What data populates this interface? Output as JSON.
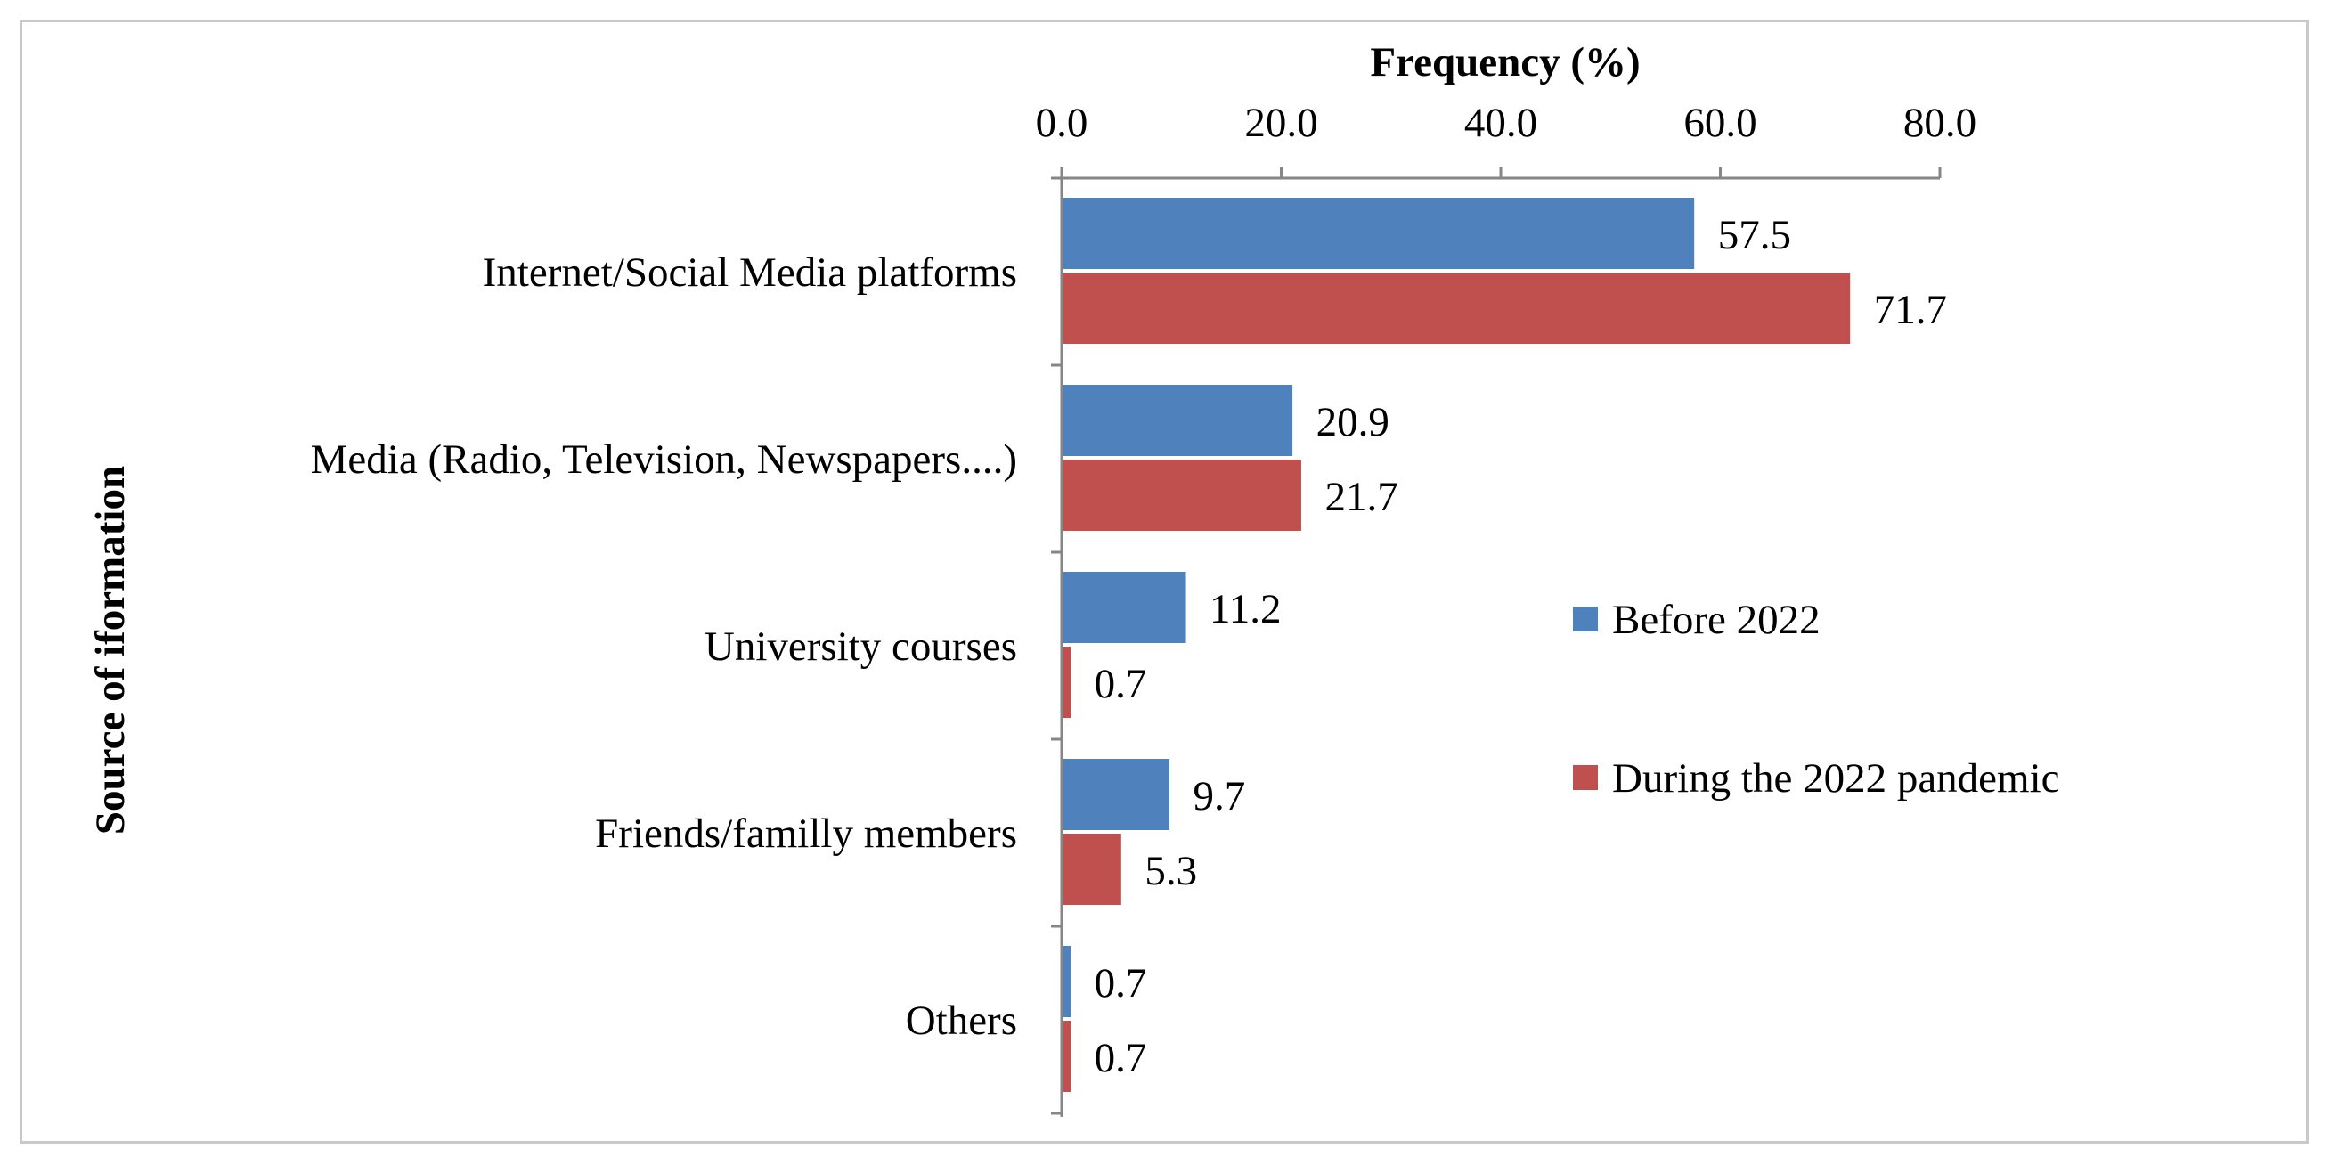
{
  "chart_data": {
    "type": "bar",
    "orientation": "horizontal",
    "title": "",
    "xlabel": "Frequency (%)",
    "ylabel": "Source of iformation",
    "xlim": [
      0,
      80
    ],
    "xticks": [
      0,
      20,
      40,
      60,
      80
    ],
    "xtick_labels": [
      "0.0",
      "20.0",
      "40.0",
      "60.0",
      "80.0"
    ],
    "x_axis_position": "top",
    "grid": false,
    "legend_position": "right",
    "categories": [
      "Internet/Social Media platforms",
      "Media (Radio, Television,  Newspapers....)",
      "University courses",
      "Friends/familly members",
      "Others"
    ],
    "series": [
      {
        "name": "Before 2022",
        "color": "#4F81BD",
        "values": [
          57.5,
          20.9,
          11.2,
          9.7,
          0.7
        ],
        "labels": [
          "57.5",
          "20.9",
          "11.2",
          "9.7",
          "0.7"
        ]
      },
      {
        "name": "During the 2022 pandemic",
        "color": "#C0504D",
        "values": [
          71.7,
          21.7,
          0.7,
          5.3,
          0.7
        ],
        "labels": [
          "71.7",
          "21.7",
          "0.7",
          "5.3",
          "0.7"
        ]
      }
    ]
  }
}
